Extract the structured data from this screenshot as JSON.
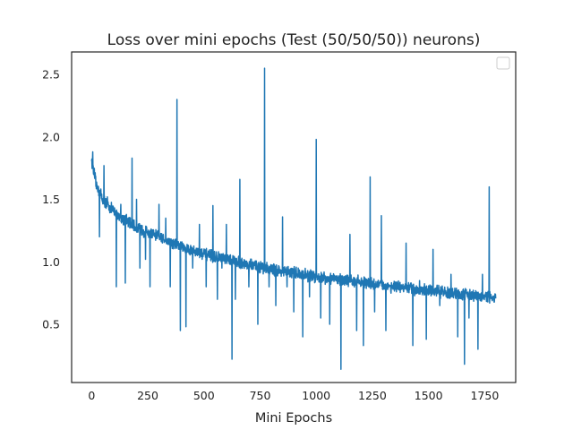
{
  "chart_data": {
    "type": "line",
    "title": "Loss over mini epochs (Test (50/50/50)) neurons)",
    "xlabel": "Mini Epochs",
    "ylabel": "",
    "xlim": [
      -89,
      1888
    ],
    "ylim": [
      0.034,
      2.68
    ],
    "x_ticks": [
      0,
      250,
      500,
      750,
      1000,
      1250,
      1500,
      1750
    ],
    "y_ticks": [
      0.5,
      1.0,
      1.5,
      2.0,
      2.5
    ],
    "x_tick_labels": [
      "0",
      "250",
      "500",
      "750",
      "1000",
      "1250",
      "1500",
      "1750"
    ],
    "y_tick_labels": [
      "0.5",
      "1.0",
      "1.5",
      "2.0",
      "2.5"
    ],
    "grid": false,
    "legend": {
      "placement": "top-right",
      "entries": []
    },
    "series": [
      {
        "color": "#1f77b4",
        "points": 1800,
        "trend": [
          [
            0,
            1.82
          ],
          [
            20,
            1.62
          ],
          [
            50,
            1.5
          ],
          [
            100,
            1.4
          ],
          [
            200,
            1.27
          ],
          [
            300,
            1.2
          ],
          [
            400,
            1.12
          ],
          [
            500,
            1.06
          ],
          [
            600,
            1.02
          ],
          [
            700,
            0.98
          ],
          [
            800,
            0.94
          ],
          [
            900,
            0.91
          ],
          [
            1000,
            0.88
          ],
          [
            1100,
            0.86
          ],
          [
            1200,
            0.84
          ],
          [
            1300,
            0.81
          ],
          [
            1400,
            0.79
          ],
          [
            1500,
            0.77
          ],
          [
            1600,
            0.75
          ],
          [
            1700,
            0.73
          ],
          [
            1800,
            0.71
          ]
        ],
        "noise": 0.035,
        "spikes": [
          [
            5,
            1.88
          ],
          [
            35,
            1.2
          ],
          [
            55,
            1.77
          ],
          [
            70,
            1.52
          ],
          [
            110,
            0.8
          ],
          [
            130,
            1.46
          ],
          [
            150,
            0.83
          ],
          [
            180,
            1.83
          ],
          [
            200,
            1.5
          ],
          [
            215,
            0.95
          ],
          [
            240,
            1.02
          ],
          [
            260,
            0.8
          ],
          [
            300,
            1.46
          ],
          [
            330,
            1.35
          ],
          [
            350,
            0.8
          ],
          [
            380,
            2.3
          ],
          [
            395,
            0.45
          ],
          [
            420,
            0.48
          ],
          [
            450,
            0.95
          ],
          [
            480,
            1.3
          ],
          [
            510,
            0.8
          ],
          [
            540,
            1.45
          ],
          [
            560,
            0.7
          ],
          [
            580,
            0.95
          ],
          [
            600,
            1.3
          ],
          [
            625,
            0.22
          ],
          [
            640,
            0.7
          ],
          [
            660,
            1.66
          ],
          [
            700,
            0.8
          ],
          [
            740,
            0.5
          ],
          [
            770,
            2.55
          ],
          [
            790,
            0.8
          ],
          [
            820,
            0.65
          ],
          [
            850,
            1.36
          ],
          [
            870,
            0.8
          ],
          [
            900,
            0.6
          ],
          [
            920,
            0.95
          ],
          [
            940,
            0.4
          ],
          [
            970,
            0.72
          ],
          [
            1000,
            1.98
          ],
          [
            1020,
            0.55
          ],
          [
            1040,
            0.82
          ],
          [
            1060,
            0.5
          ],
          [
            1110,
            0.14
          ],
          [
            1150,
            1.22
          ],
          [
            1180,
            0.45
          ],
          [
            1210,
            0.33
          ],
          [
            1240,
            1.68
          ],
          [
            1260,
            0.6
          ],
          [
            1290,
            1.37
          ],
          [
            1310,
            0.45
          ],
          [
            1350,
            0.8
          ],
          [
            1400,
            1.15
          ],
          [
            1430,
            0.33
          ],
          [
            1460,
            0.85
          ],
          [
            1490,
            0.38
          ],
          [
            1520,
            1.1
          ],
          [
            1550,
            0.65
          ],
          [
            1600,
            0.9
          ],
          [
            1630,
            0.4
          ],
          [
            1660,
            0.18
          ],
          [
            1680,
            0.55
          ],
          [
            1720,
            0.3
          ],
          [
            1740,
            0.9
          ],
          [
            1770,
            1.6
          ],
          [
            1790,
            0.7
          ]
        ]
      }
    ]
  }
}
